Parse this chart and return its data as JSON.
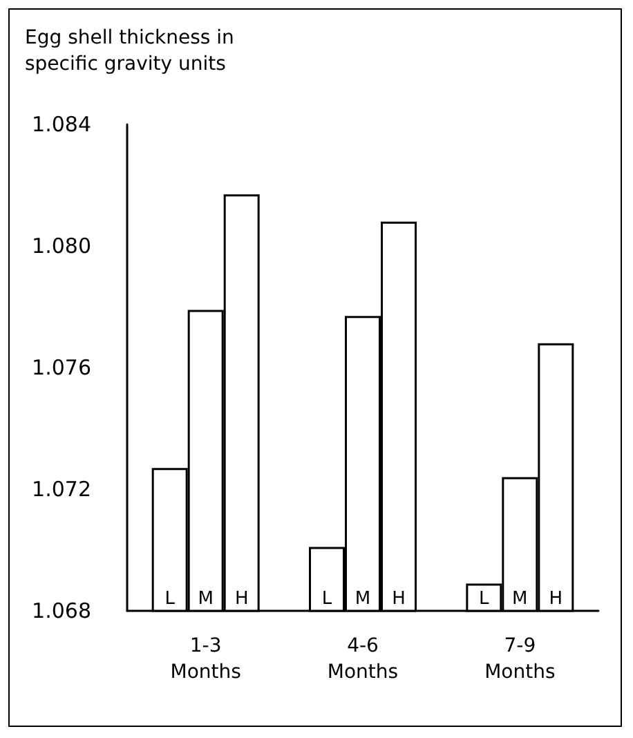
{
  "chart_data": {
    "type": "bar",
    "ylabel": "Egg shell thickness in\nspecific gravity units",
    "categories": [
      "1-3\nMonths",
      "4-6\nMonths",
      "7-9\nMonths"
    ],
    "series": [
      {
        "name": "L",
        "color": "#ffffff",
        "values": [
          1.0727,
          1.0701,
          1.0689
        ]
      },
      {
        "name": "M",
        "color": "#ffffff",
        "values": [
          1.0779,
          1.0777,
          1.0724
        ]
      },
      {
        "name": "H",
        "color": "#ffffff",
        "values": [
          1.0817,
          1.0808,
          1.0768
        ]
      }
    ],
    "ylim": [
      1.068,
      1.084
    ],
    "yticks": [
      1.068,
      1.072,
      1.076,
      {
        "value": 1.08,
        "label": "1.080"
      },
      1.084
    ],
    "grid": false,
    "legend": false
  }
}
